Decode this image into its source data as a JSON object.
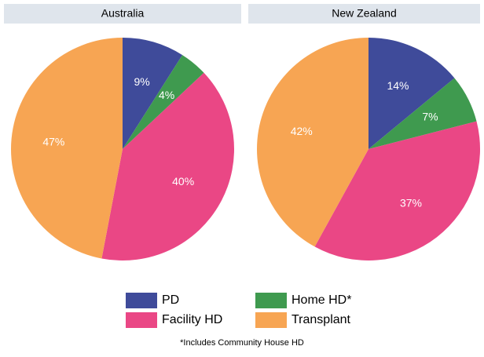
{
  "chart_data": [
    {
      "type": "pie",
      "title": "Australia",
      "categories": [
        "PD",
        "Home HD*",
        "Facility HD",
        "Transplant"
      ],
      "values": [
        9,
        4,
        40,
        47
      ],
      "value_labels": [
        "9%",
        "4%",
        "40%",
        "47%"
      ],
      "colors": [
        "#3f4b9a",
        "#3f9a4f",
        "#ea4785",
        "#f7a553"
      ]
    },
    {
      "type": "pie",
      "title": "New Zealand",
      "categories": [
        "PD",
        "Home HD*",
        "Facility HD",
        "Transplant"
      ],
      "values": [
        14,
        7,
        37,
        42
      ],
      "value_labels": [
        "14%",
        "7%",
        "37%",
        "42%"
      ],
      "colors": [
        "#3f4b9a",
        "#3f9a4f",
        "#ea4785",
        "#f7a553"
      ]
    }
  ],
  "note": "*Includes Community House HD"
}
